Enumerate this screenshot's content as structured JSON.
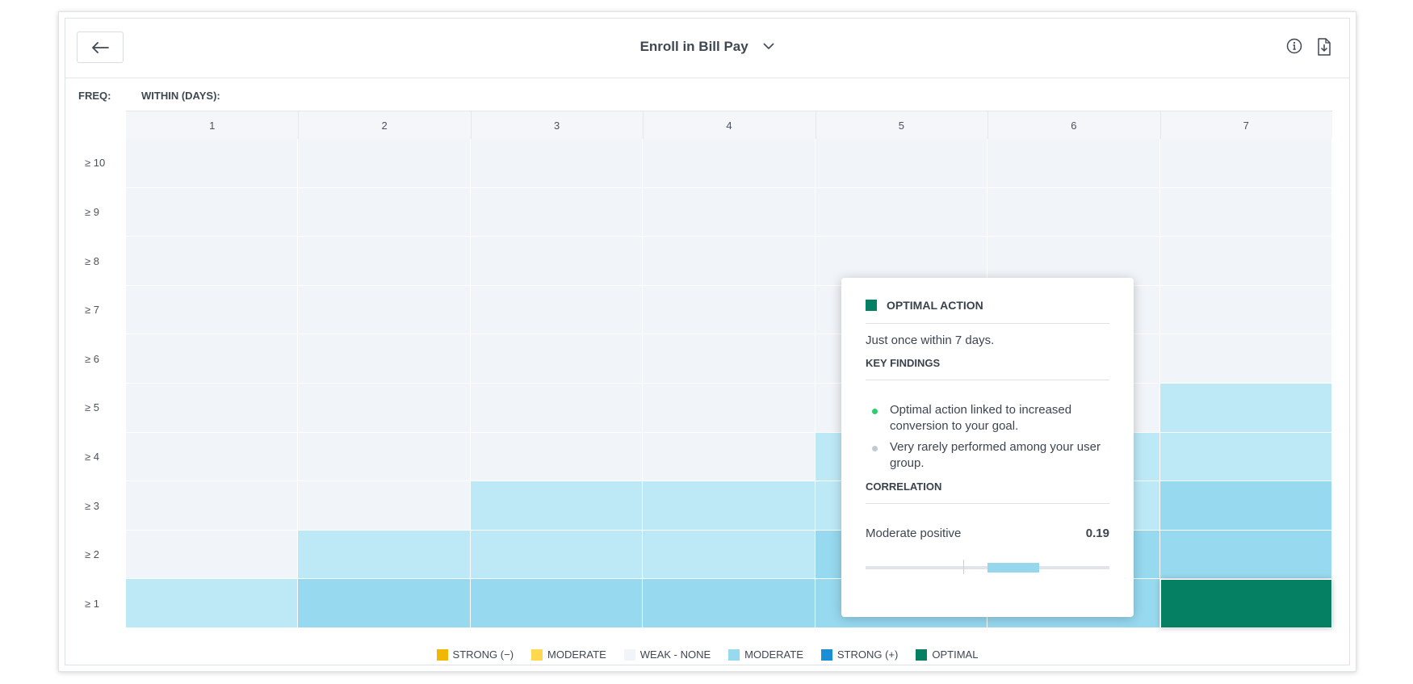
{
  "header": {
    "title": "Enroll in Bill Pay",
    "back_icon": "arrow-left-icon",
    "info_icon": "info-icon",
    "download_icon": "download-icon"
  },
  "axes": {
    "freq_label": "FREQ:",
    "within_label": "WITHIN (DAYS):",
    "columns": [
      "1",
      "2",
      "3",
      "4",
      "5",
      "6",
      "7"
    ],
    "rows": [
      "≥ 10",
      "≥ 9",
      "≥ 8",
      "≥ 7",
      "≥ 6",
      "≥ 5",
      "≥ 4",
      "≥ 3",
      "≥ 2",
      "≥ 1"
    ]
  },
  "colors": {
    "strong_neg": "#f2b705",
    "moderate_neg": "#ffd84d",
    "weak": "#f1f4f8",
    "moderate_pos_light": "#bde9f7",
    "moderate_pos": "#97d9ef",
    "strong_pos": "#1a8fd6",
    "optimal": "#058062"
  },
  "chart_data": {
    "type": "heatmap",
    "x": [
      1,
      2,
      3,
      4,
      5,
      6,
      7
    ],
    "x_label": "WITHIN (DAYS):",
    "y": [
      "≥ 10",
      "≥ 9",
      "≥ 8",
      "≥ 7",
      "≥ 6",
      "≥ 5",
      "≥ 4",
      "≥ 3",
      "≥ 2",
      "≥ 1"
    ],
    "y_label": "FREQ:",
    "cells": [
      [
        "weak",
        "weak",
        "weak",
        "weak",
        "weak",
        "weak",
        "weak"
      ],
      [
        "weak",
        "weak",
        "weak",
        "weak",
        "weak",
        "weak",
        "weak"
      ],
      [
        "weak",
        "weak",
        "weak",
        "weak",
        "weak",
        "weak",
        "weak"
      ],
      [
        "weak",
        "weak",
        "weak",
        "weak",
        "weak",
        "weak",
        "weak"
      ],
      [
        "weak",
        "weak",
        "weak",
        "weak",
        "weak",
        "weak",
        "weak"
      ],
      [
        "weak",
        "weak",
        "weak",
        "weak",
        "weak",
        "weak",
        "moderate_pos_light"
      ],
      [
        "weak",
        "weak",
        "weak",
        "weak",
        "moderate_pos_light",
        "moderate_pos_light",
        "moderate_pos_light"
      ],
      [
        "weak",
        "weak",
        "moderate_pos_light",
        "moderate_pos_light",
        "moderate_pos_light",
        "moderate_pos_light",
        "moderate_pos"
      ],
      [
        "weak",
        "moderate_pos_light",
        "moderate_pos_light",
        "moderate_pos_light",
        "moderate_pos",
        "moderate_pos",
        "moderate_pos"
      ],
      [
        "moderate_pos_light",
        "moderate_pos",
        "moderate_pos",
        "moderate_pos",
        "moderate_pos",
        "moderate_pos",
        "optimal"
      ]
    ],
    "legend": [
      {
        "label": "STRONG (−)",
        "color_key": "strong_neg"
      },
      {
        "label": "MODERATE",
        "color_key": "moderate_neg"
      },
      {
        "label": "WEAK - NONE",
        "color_key": "weak"
      },
      {
        "label": "MODERATE",
        "color_key": "moderate_pos"
      },
      {
        "label": "STRONG (+)",
        "color_key": "strong_pos"
      },
      {
        "label": "OPTIMAL",
        "color_key": "optimal"
      }
    ],
    "legend_position": "bottom"
  },
  "tooltip": {
    "heading": "OPTIMAL ACTION",
    "description": "Just once within 7 days.",
    "key_findings_label": "KEY FINDINGS",
    "findings": [
      {
        "text": "Optimal action linked to increased conversion to your goal.",
        "dot_color": "#2ecc71"
      },
      {
        "text": "Very rarely performed among your user group.",
        "dot_color": "#c3cad3"
      }
    ],
    "correlation_label": "CORRELATION",
    "correlation_text": "Moderate positive",
    "correlation_value": "0.19",
    "correlation_numeric": 0.19
  }
}
